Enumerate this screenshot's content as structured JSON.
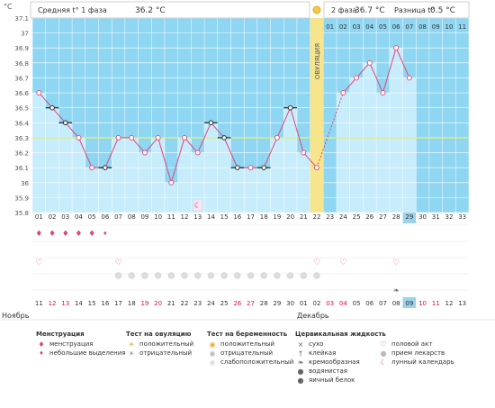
{
  "header": {
    "phase1_label": "Средняя t° 1 фаза",
    "phase1_value": "36.2 °C",
    "phase2_label": "2 фаза",
    "phase2_value": "36.7 °C",
    "diff_label": "Разница t°",
    "diff_value": "0.5 °C",
    "sun_icon": "sun-icon"
  },
  "chart_data": {
    "type": "line",
    "ylabel": "°C",
    "ylim": [
      35.8,
      37.1
    ],
    "y_ticks": [
      "35.8",
      "35.9",
      "36",
      "36.1",
      "36.2",
      "36.3",
      "36.4",
      "36.5",
      "36.6",
      "36.7",
      "36.8",
      "36.9",
      "37",
      "37.1"
    ],
    "cycle_days": [
      "01",
      "02",
      "03",
      "04",
      "05",
      "06",
      "07",
      "08",
      "09",
      "10",
      "11",
      "12",
      "13",
      "14",
      "15",
      "16",
      "17",
      "18",
      "19",
      "20",
      "21",
      "22",
      "23",
      "24",
      "25",
      "26",
      "27",
      "28",
      "29",
      "30",
      "31",
      "32",
      "33"
    ],
    "dates": [
      "11",
      "12",
      "13",
      "14",
      "15",
      "16",
      "17",
      "18",
      "19",
      "20",
      "21",
      "22",
      "23",
      "24",
      "25",
      "26",
      "27",
      "28",
      "29",
      "30",
      "01",
      "02",
      "03",
      "04",
      "05",
      "06",
      "07",
      "08",
      "09",
      "10",
      "11",
      "12",
      "13"
    ],
    "weekend_dates_idx": [
      1,
      2,
      8,
      9,
      15,
      16,
      22,
      23,
      29,
      30
    ],
    "today_idx": 28,
    "months": [
      "Ноябрь",
      "Декабрь"
    ],
    "ovulation_label": "ОВУЛЯЦИЯ",
    "ovulation_day_idx": 21,
    "post_ov_days": [
      "01",
      "02",
      "03",
      "04",
      "05",
      "06",
      "07",
      "08",
      "09",
      "10",
      "11"
    ],
    "coverline": 36.3,
    "temperatures": [
      36.6,
      36.5,
      36.4,
      36.3,
      36.1,
      36.1,
      36.3,
      36.3,
      36.2,
      36.3,
      36.0,
      36.3,
      36.2,
      36.4,
      36.3,
      36.1,
      36.1,
      36.1,
      36.3,
      36.5,
      36.2,
      36.1,
      null,
      36.6,
      36.7,
      36.8,
      36.6,
      36.9,
      36.7
    ],
    "markers": [
      "heart",
      "square",
      "square",
      "heart",
      "heart",
      "square",
      "heart",
      "heart",
      "heart",
      "heart",
      "heart",
      "heart",
      "heart",
      "square",
      "square",
      "square",
      "circle",
      "square",
      "heart",
      "square",
      "heart",
      "heart",
      null,
      "heart",
      "heart",
      "heart",
      "heart",
      "heart",
      "heart"
    ],
    "dashed_segment": [
      21,
      23
    ],
    "menstruation_days": [
      0,
      1,
      2,
      3,
      4
    ],
    "spotting_days": [
      5
    ],
    "intercourse_days": [
      0,
      6,
      21,
      23,
      27
    ],
    "pill_days": [
      6,
      7,
      8,
      9,
      10,
      11,
      12,
      13,
      14,
      15,
      16,
      17,
      18,
      19,
      20,
      21
    ],
    "moon_day": 12,
    "mucus_day": 27,
    "colors": {
      "sky": "#8fd6f2",
      "bar": "#c7ecfb",
      "line": "#e0457a",
      "coverline": "#e8f06a",
      "ovulation": "#f7e58d",
      "grid": "#ffffff",
      "today": "#9dd3ea"
    }
  },
  "legend": {
    "menstruation": {
      "title": "Менструация",
      "items": [
        "менструация",
        "небольшие выделения"
      ]
    },
    "ovulation_test": {
      "title": "Тест на овуляцию",
      "items": [
        "положительный",
        "отрицательный"
      ]
    },
    "pregnancy_test": {
      "title": "Тест на беременность",
      "items": [
        "положительный",
        "отрицательный",
        "слабоположительный"
      ]
    },
    "cervical": {
      "title": "Цервикальная жидкость",
      "items": [
        "сухо",
        "клейкая",
        "кремообразная",
        "водянистая",
        "яичный белок"
      ]
    },
    "other": {
      "items": [
        "половой акт",
        "прием лекарств",
        "лунный календарь"
      ]
    }
  }
}
